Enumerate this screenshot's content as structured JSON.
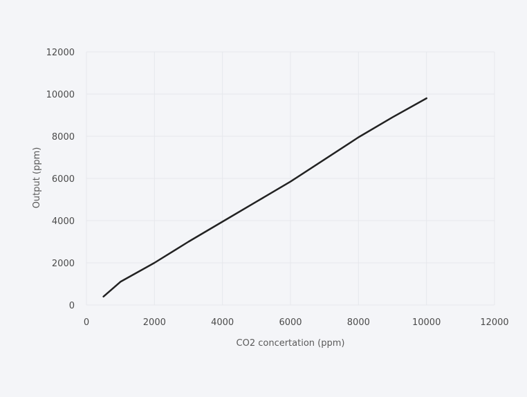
{
  "chart_data": {
    "type": "line",
    "xlabel": "CO2 concertation (ppm)",
    "ylabel": "Output (ppm)",
    "xlim": [
      0,
      12000
    ],
    "ylim": [
      0,
      12000
    ],
    "x_ticks": [
      "0",
      "2000",
      "4000",
      "6000",
      "8000",
      "10000",
      "12000"
    ],
    "y_ticks": [
      "0",
      "2000",
      "4000",
      "6000",
      "8000",
      "10000",
      "12000"
    ],
    "grid": true,
    "colors": {
      "line": "#222222",
      "grid": "#e6e8ec"
    },
    "series": [
      {
        "x": [
          500,
          1000,
          2000,
          3000,
          4000,
          5000,
          6000,
          7000,
          8000,
          9000,
          10000
        ],
        "y": [
          400,
          1100,
          2000,
          3000,
          3950,
          4900,
          5850,
          6900,
          7950,
          8900,
          9800
        ]
      }
    ]
  }
}
